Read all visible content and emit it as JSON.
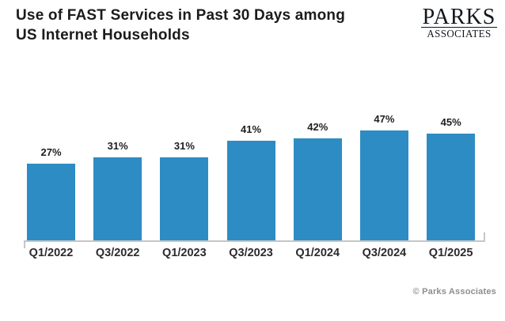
{
  "header": {
    "title_line1": "Use of FAST Services in Past 30 Days among",
    "title_line2": "US Internet Households"
  },
  "logo": {
    "name": "PARKS",
    "subname": "ASSOCIATES"
  },
  "footer": {
    "copyright": "© Parks Associates"
  },
  "colors": {
    "background": "#FFFFFF",
    "bar": "#2D8CC3",
    "axis": "#C6C6C6",
    "title": "#1B1B1B",
    "label": "#1F1F1F",
    "cat": "#2B2B2B",
    "footer": "#8E8E8E"
  },
  "chart_data": {
    "type": "bar",
    "title": "Use of FAST Services in Past 30 Days among US Internet Households",
    "categories": [
      "Q1/2022",
      "Q3/2022",
      "Q1/2023",
      "Q3/2023",
      "Q1/2024",
      "Q3/2024",
      "Q1/2025"
    ],
    "values": [
      27,
      31,
      31,
      41,
      42,
      47,
      45
    ],
    "value_labels": [
      "27%",
      "31%",
      "31%",
      "41%",
      "42%",
      "47%",
      "45%"
    ],
    "unit": "%",
    "xlabel": "",
    "ylabel": "",
    "ylim": [
      0,
      50
    ],
    "grid": false,
    "legend": false,
    "bar_color": "#2D8CC3",
    "source": "© Parks Associates"
  }
}
